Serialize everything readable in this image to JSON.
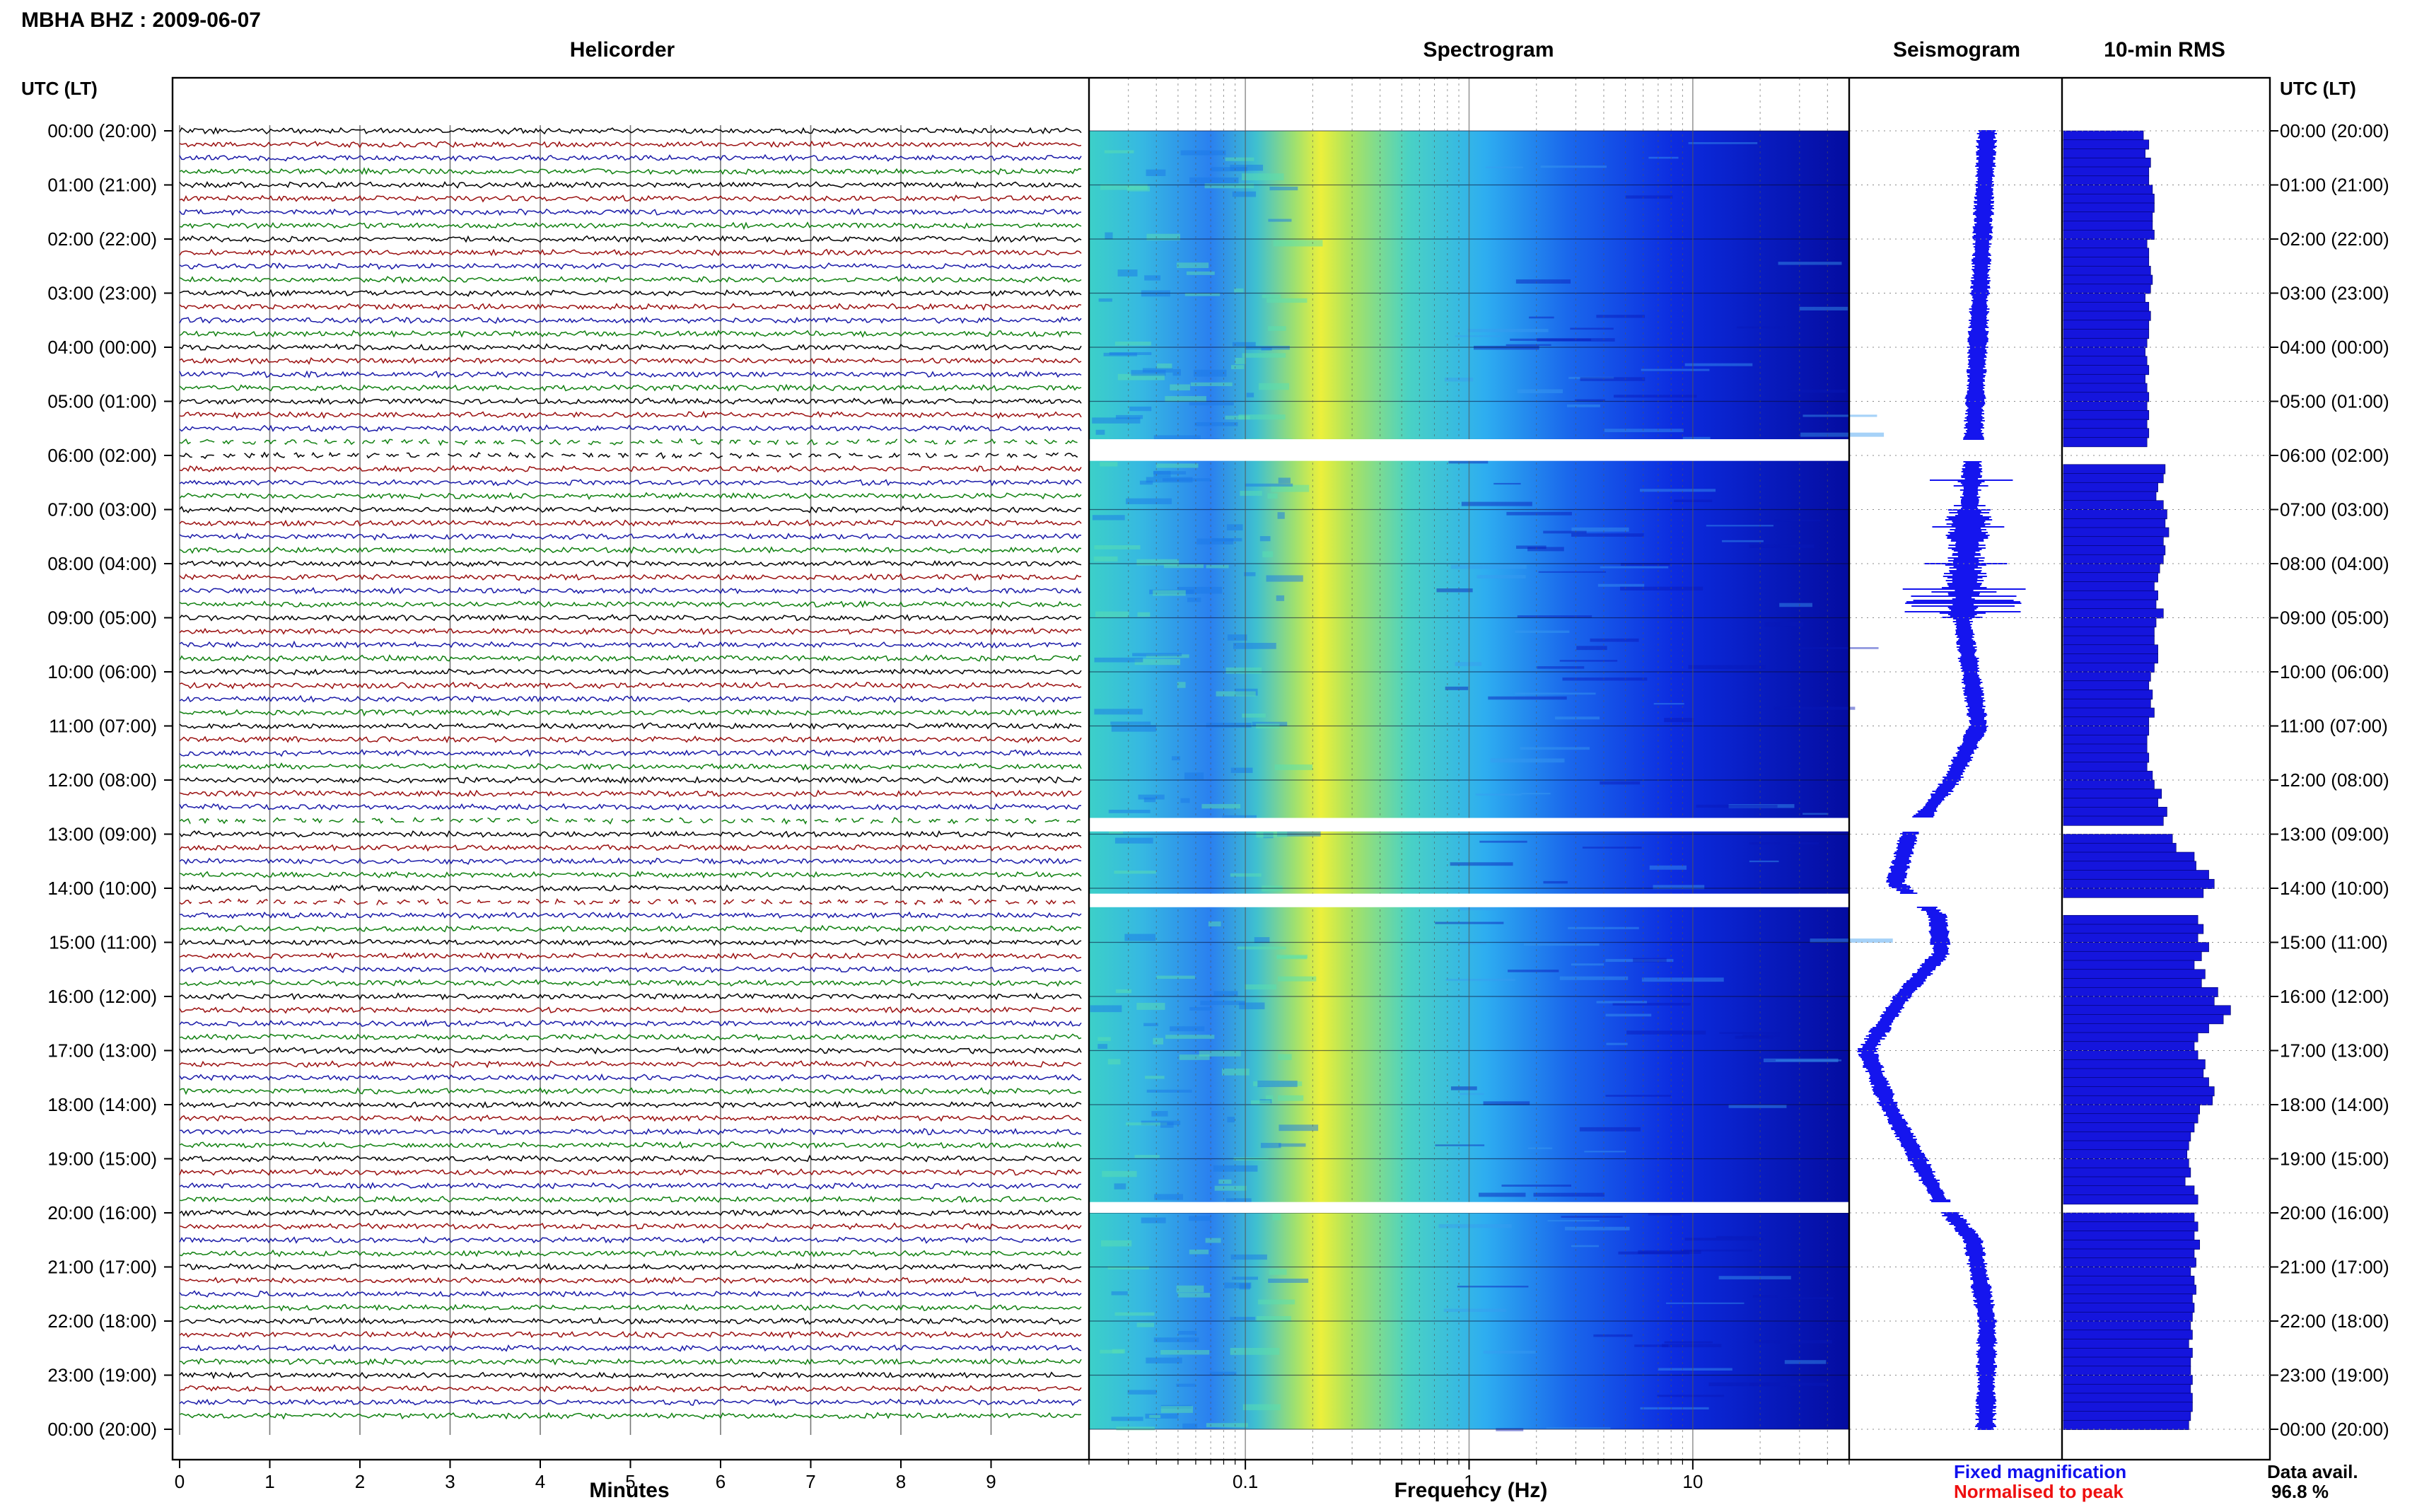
{
  "header": {
    "title": "MBHA BHZ : 2009-06-07"
  },
  "panels": {
    "helicorder": "Helicorder",
    "spectrogram": "Spectrogram",
    "seismogram": "Seismogram",
    "rms": "10-min RMS"
  },
  "axes": {
    "left_label": "UTC (LT)",
    "right_label": "UTC (LT)",
    "helicorder_xlabel": "Minutes",
    "spectrogram_xlabel": "Frequency (Hz)"
  },
  "legend": {
    "fixed": "Fixed magnification",
    "normalised": "Normalised to peak",
    "fixed_color": "#1010ee",
    "normalised_color": "#ee1010"
  },
  "data_availability": {
    "label": "Data avail.",
    "value": "96.8 %"
  },
  "colors": {
    "trace_cycle": [
      "#000000",
      "#9a1010",
      "#1a1aa8",
      "#108010"
    ],
    "seismogram": "#1515ee",
    "rms": "#1515dd"
  },
  "chart_data": {
    "type": "heatmap",
    "time_labels": [
      "00:00 (20:00)",
      "01:00 (21:00)",
      "02:00 (22:00)",
      "03:00 (23:00)",
      "04:00 (00:00)",
      "05:00 (01:00)",
      "06:00 (02:00)",
      "07:00 (03:00)",
      "08:00 (04:00)",
      "09:00 (05:00)",
      "10:00 (06:00)",
      "11:00 (07:00)",
      "12:00 (08:00)",
      "13:00 (09:00)",
      "14:00 (10:00)",
      "15:00 (11:00)",
      "16:00 (12:00)",
      "17:00 (13:00)",
      "18:00 (14:00)",
      "19:00 (15:00)",
      "20:00 (16:00)",
      "21:00 (17:00)",
      "22:00 (18:00)",
      "23:00 (19:00)",
      "00:00 (20:00)"
    ],
    "minutes_ticks": [
      "0",
      "1",
      "2",
      "3",
      "4",
      "5",
      "6",
      "7",
      "8",
      "9"
    ],
    "frequency_ticks": [
      "0.1",
      "1",
      "10"
    ],
    "frequency_range_hz": [
      0.02,
      50
    ],
    "data_gaps_utc_hours": [
      [
        5.7,
        6.1
      ],
      [
        12.7,
        12.95
      ],
      [
        14.1,
        14.35
      ],
      [
        19.8,
        20.0
      ]
    ],
    "rms_10min_relative": [
      0.44,
      0.47,
      0.45,
      0.48,
      0.47,
      0.47,
      0.49,
      0.5,
      0.5,
      0.49,
      0.49,
      0.5,
      0.46,
      0.47,
      0.47,
      0.48,
      0.49,
      0.48,
      0.45,
      0.47,
      0.48,
      0.47,
      0.47,
      0.46,
      0.45,
      0.46,
      0.47,
      0.45,
      0.46,
      0.47,
      0.46,
      0.47,
      0.46,
      0.47,
      0.46,
      0.47,
      0.52,
      0.56,
      0.55,
      0.52,
      0.51,
      0.55,
      0.57,
      0.56,
      0.58,
      0.55,
      0.56,
      0.55,
      0.53,
      0.52,
      0.5,
      0.52,
      0.51,
      0.55,
      0.51,
      0.5,
      0.5,
      0.52,
      0.52,
      0.5,
      0.48,
      0.47,
      0.49,
      0.48,
      0.5,
      0.47,
      0.47,
      0.46,
      0.46,
      0.47,
      0.46,
      0.49,
      0.5,
      0.54,
      0.52,
      0.57,
      0.55,
      0.61,
      0.6,
      0.62,
      0.72,
      0.73,
      0.8,
      0.83,
      0.77,
      0.73,
      0.71,
      0.74,
      0.77,
      0.74,
      0.8,
      0.76,
      0.72,
      0.78,
      0.76,
      0.85,
      0.83,
      0.92,
      0.88,
      0.8,
      0.74,
      0.72,
      0.74,
      0.78,
      0.77,
      0.8,
      0.83,
      0.82,
      0.75,
      0.74,
      0.72,
      0.7,
      0.69,
      0.68,
      0.69,
      0.7,
      0.67,
      0.72,
      0.74,
      0.74,
      0.72,
      0.74,
      0.72,
      0.75,
      0.72,
      0.73,
      0.7,
      0.72,
      0.73,
      0.71,
      0.72,
      0.71,
      0.7,
      0.71,
      0.69,
      0.71,
      0.7,
      0.7,
      0.71,
      0.7,
      0.71,
      0.71,
      0.7,
      0.69
    ]
  }
}
